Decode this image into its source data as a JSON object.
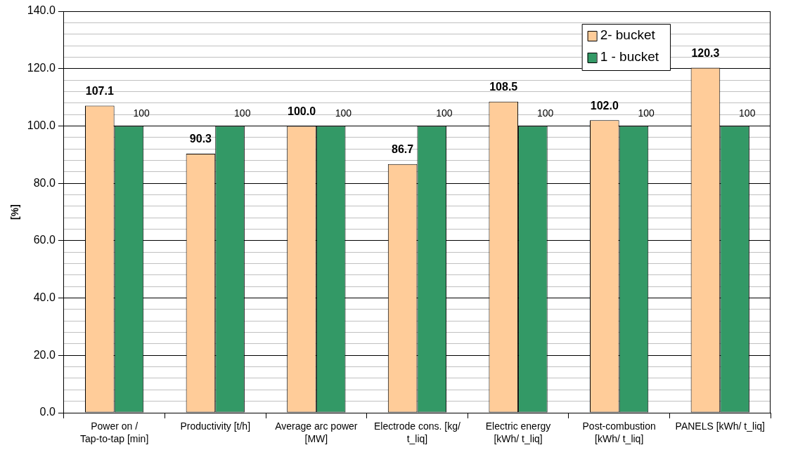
{
  "chart_data": {
    "type": "bar",
    "ylabel": "[%]",
    "categories": [
      "Power on / Tap-to-tap [min]",
      "Productivity [t/h]",
      "Average arc power [MW]",
      "Electrode cons. [kg/ t_liq]",
      "Electric energy [kWh/ t_liq]",
      "Post-combustion [kWh/ t_liq]",
      "PANELS [kWh/ t_liq]"
    ],
    "series": [
      {
        "name": "2- bucket",
        "color": "#ffcc99",
        "values": [
          107.1,
          90.3,
          100.0,
          86.7,
          108.5,
          102.0,
          120.3
        ],
        "value_labels": [
          "107.1",
          "90.3",
          "100.0",
          "86.7",
          "108.5",
          "102.0",
          "120.3"
        ]
      },
      {
        "name": "1 - bucket",
        "color": "#339966",
        "values": [
          100,
          100,
          100,
          100,
          100,
          100,
          100
        ],
        "value_labels": [
          "100",
          "100",
          "100",
          "100",
          "100",
          "100",
          "100"
        ]
      }
    ],
    "ylim": [
      0,
      140
    ],
    "yticks": [
      {
        "value": 0,
        "label": "0.0"
      },
      {
        "value": 4,
        "label": null
      },
      {
        "value": 8,
        "label": null
      },
      {
        "value": 12,
        "label": null
      },
      {
        "value": 16,
        "label": null
      },
      {
        "value": 20,
        "label": "20.0"
      },
      {
        "value": 24,
        "label": null
      },
      {
        "value": 28,
        "label": null
      },
      {
        "value": 32,
        "label": null
      },
      {
        "value": 36,
        "label": null
      },
      {
        "value": 40,
        "label": "40.0"
      },
      {
        "value": 44,
        "label": null
      },
      {
        "value": 48,
        "label": null
      },
      {
        "value": 52,
        "label": null
      },
      {
        "value": 56,
        "label": null
      },
      {
        "value": 60,
        "label": "60.0"
      },
      {
        "value": 64,
        "label": null
      },
      {
        "value": 68,
        "label": null
      },
      {
        "value": 72,
        "label": null
      },
      {
        "value": 76,
        "label": null
      },
      {
        "value": 80,
        "label": "80.0"
      },
      {
        "value": 84,
        "label": null
      },
      {
        "value": 88,
        "label": null
      },
      {
        "value": 92,
        "label": null
      },
      {
        "value": 96,
        "label": null
      },
      {
        "value": 100,
        "label": "100.0"
      },
      {
        "value": 104,
        "label": null
      },
      {
        "value": 108,
        "label": null
      },
      {
        "value": 112,
        "label": null
      },
      {
        "value": 116,
        "label": null
      },
      {
        "value": 120,
        "label": "120.0"
      },
      {
        "value": 124,
        "label": null
      },
      {
        "value": 128,
        "label": null
      },
      {
        "value": 132,
        "label": null
      },
      {
        "value": 136,
        "label": null
      },
      {
        "value": 140,
        "label": "140.0"
      }
    ],
    "grid": "y",
    "legend": "top right"
  }
}
